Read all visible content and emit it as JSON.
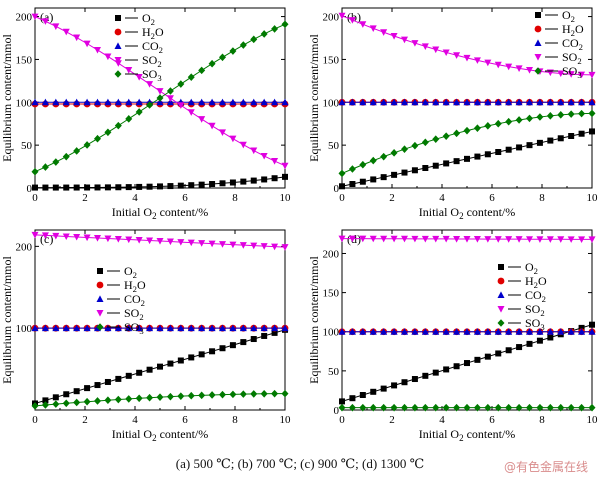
{
  "caption": "(a) 500 ℃; (b) 700 ℃; (c) 900 ℃; (d) 1300 ℃",
  "watermark": "@有色金属在线",
  "legend_entries": [
    {
      "key": "O2",
      "main": "O",
      "sub": "2",
      "color": "#000000",
      "marker": "square"
    },
    {
      "key": "H2O",
      "main": "H",
      "sub": "2",
      "tail": "O",
      "color": "#e00000",
      "marker": "circle"
    },
    {
      "key": "CO2",
      "main": "CO",
      "sub": "2",
      "color": "#0000cc",
      "marker": "triangle-up"
    },
    {
      "key": "SO2",
      "main": "SO",
      "sub": "2",
      "color": "#e000e0",
      "marker": "triangle-down"
    },
    {
      "key": "SO3",
      "main": "SO",
      "sub": "3",
      "color": "#007a00",
      "marker": "diamond"
    }
  ],
  "chart_data": [
    {
      "panel": "(a)",
      "type": "line",
      "xlabel": "Initial O2 content/%",
      "ylabel": "Equilibrium content/mmol",
      "xlim": [
        0,
        10
      ],
      "ylim": [
        0,
        210
      ],
      "xticks": [
        0,
        2,
        4,
        6,
        8,
        10
      ],
      "yticks": [
        0,
        50,
        100,
        150,
        200
      ],
      "legend": "top-left",
      "series": [
        {
          "name": "O2",
          "start": 0.5,
          "end": 13,
          "curve": "convex"
        },
        {
          "name": "H2O",
          "start": 98,
          "end": 98,
          "curve": "linear"
        },
        {
          "name": "CO2",
          "start": 100,
          "end": 100,
          "curve": "linear"
        },
        {
          "name": "SO2",
          "start": 200,
          "end": 26,
          "curve": "sigmoid"
        },
        {
          "name": "SO3",
          "start": 19,
          "end": 191,
          "curve": "sigmoid"
        }
      ]
    },
    {
      "panel": "(b)",
      "type": "line",
      "xlabel": "Initial O2 content/%",
      "ylabel": "Equilibrium content/mmol",
      "xlim": [
        0,
        10
      ],
      "ylim": [
        0,
        210
      ],
      "xticks": [
        0,
        2,
        4,
        6,
        8,
        10
      ],
      "yticks": [
        0,
        50,
        100,
        150,
        200
      ],
      "legend": "top-right",
      "series": [
        {
          "name": "O2",
          "start": 2,
          "end": 66,
          "curve": "linear"
        },
        {
          "name": "H2O",
          "start": 100,
          "end": 100,
          "curve": "linear"
        },
        {
          "name": "CO2",
          "start": 100,
          "end": 100,
          "curve": "linear"
        },
        {
          "name": "SO2",
          "start": 201,
          "end": 132,
          "curve": "concave"
        },
        {
          "name": "SO3",
          "start": 17,
          "end": 87,
          "curve": "concave"
        }
      ]
    },
    {
      "panel": "(c)",
      "type": "line",
      "xlabel": "Initial O2 content/%",
      "ylabel": "Equilibrium content/mmol",
      "xlim": [
        0,
        10
      ],
      "ylim": [
        0,
        220
      ],
      "xticks": [
        0,
        2,
        4,
        6,
        8,
        10
      ],
      "yticks": [
        100,
        200
      ],
      "legend": "top-left",
      "series": [
        {
          "name": "O2",
          "start": 8,
          "end": 98,
          "curve": "linear"
        },
        {
          "name": "H2O",
          "start": 100,
          "end": 100,
          "curve": "linear"
        },
        {
          "name": "CO2",
          "start": 100,
          "end": 100,
          "curve": "linear"
        },
        {
          "name": "SO2",
          "start": 214,
          "end": 199,
          "curve": "linear"
        },
        {
          "name": "SO3",
          "start": 5,
          "end": 20,
          "curve": "concave"
        }
      ]
    },
    {
      "panel": "(d)",
      "type": "line",
      "xlabel": "Initial O2 content/%",
      "ylabel": "Equilibrium content/mmol",
      "xlim": [
        0,
        10
      ],
      "ylim": [
        0,
        230
      ],
      "xticks": [
        0,
        2,
        4,
        6,
        8,
        10
      ],
      "yticks": [
        0,
        50,
        100,
        150,
        200
      ],
      "legend": "top-center",
      "series": [
        {
          "name": "O2",
          "start": 11,
          "end": 109,
          "curve": "linear"
        },
        {
          "name": "H2O",
          "start": 100,
          "end": 100,
          "curve": "linear"
        },
        {
          "name": "CO2",
          "start": 100,
          "end": 100,
          "curve": "linear"
        },
        {
          "name": "SO2",
          "start": 219,
          "end": 218,
          "curve": "linear"
        },
        {
          "name": "SO3",
          "start": 3,
          "end": 3,
          "curve": "linear"
        }
      ]
    }
  ]
}
